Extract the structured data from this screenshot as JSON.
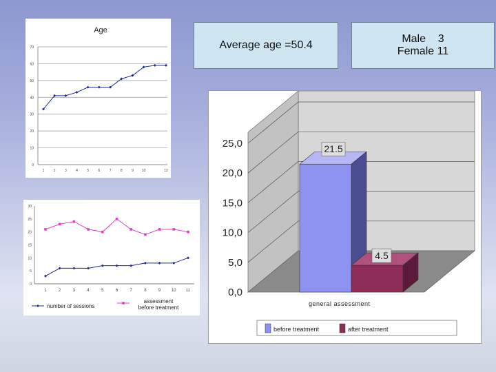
{
  "stats": {
    "average_age": "Average age =50.4",
    "male": "Male    3",
    "female": "Female 11"
  },
  "colors": {
    "line_blue": "#1f2a8a",
    "line_magenta": "#e040c8",
    "bar_before": "#8e92f0",
    "bar_after": "#8e2c58"
  },
  "chart_data": [
    {
      "type": "line",
      "title": "Age",
      "x": [
        1,
        2,
        3,
        4,
        5,
        6,
        7,
        8,
        9,
        10,
        11,
        12
      ],
      "x_tick_labels": [
        "1",
        "2",
        "3",
        "4",
        "5",
        "6",
        "7",
        "8",
        "9",
        "10",
        "",
        "12"
      ],
      "series": [
        {
          "name": "Age",
          "values": [
            33,
            41,
            41,
            43,
            46,
            46,
            46,
            51,
            53,
            58,
            59,
            59
          ]
        }
      ],
      "ylim": [
        0,
        70
      ],
      "y_ticks": [
        "0",
        "10",
        "20",
        "30",
        "40",
        "50",
        "60",
        "70"
      ]
    },
    {
      "type": "line",
      "title": "",
      "x": [
        1,
        2,
        3,
        4,
        5,
        6,
        7,
        8,
        9,
        10,
        11
      ],
      "x_tick_labels": [
        "1",
        "2",
        "3",
        "4",
        "5",
        "6",
        "7",
        "8",
        "9",
        "10",
        "11"
      ],
      "series": [
        {
          "name": "number of sessions",
          "values": [
            3,
            6,
            6,
            6,
            7,
            7,
            7,
            8,
            8,
            8,
            10
          ]
        },
        {
          "name": "assessment before treatment",
          "values": [
            21,
            23,
            24,
            21,
            20,
            25,
            21,
            19,
            21,
            21,
            20
          ]
        }
      ],
      "ylim": [
        0,
        30
      ],
      "y_ticks": [
        "0",
        "5",
        "10",
        "15",
        "20",
        "25",
        "30"
      ],
      "legend_top": "assessment",
      "legend_bottom": "before treatment"
    },
    {
      "type": "bar",
      "title": "",
      "categories": [
        "general assessment"
      ],
      "series": [
        {
          "name": "before treatment",
          "values": [
            21.5
          ],
          "label": "21.5"
        },
        {
          "name": "after treatment",
          "values": [
            4.5
          ],
          "label": "4.5"
        }
      ],
      "ylim": [
        0,
        25
      ],
      "y_ticks": [
        "0,0",
        "5,0",
        "10,0",
        "15,0",
        "20,0",
        "25,0"
      ],
      "legend": [
        "before treatment",
        "after treatment"
      ]
    }
  ]
}
